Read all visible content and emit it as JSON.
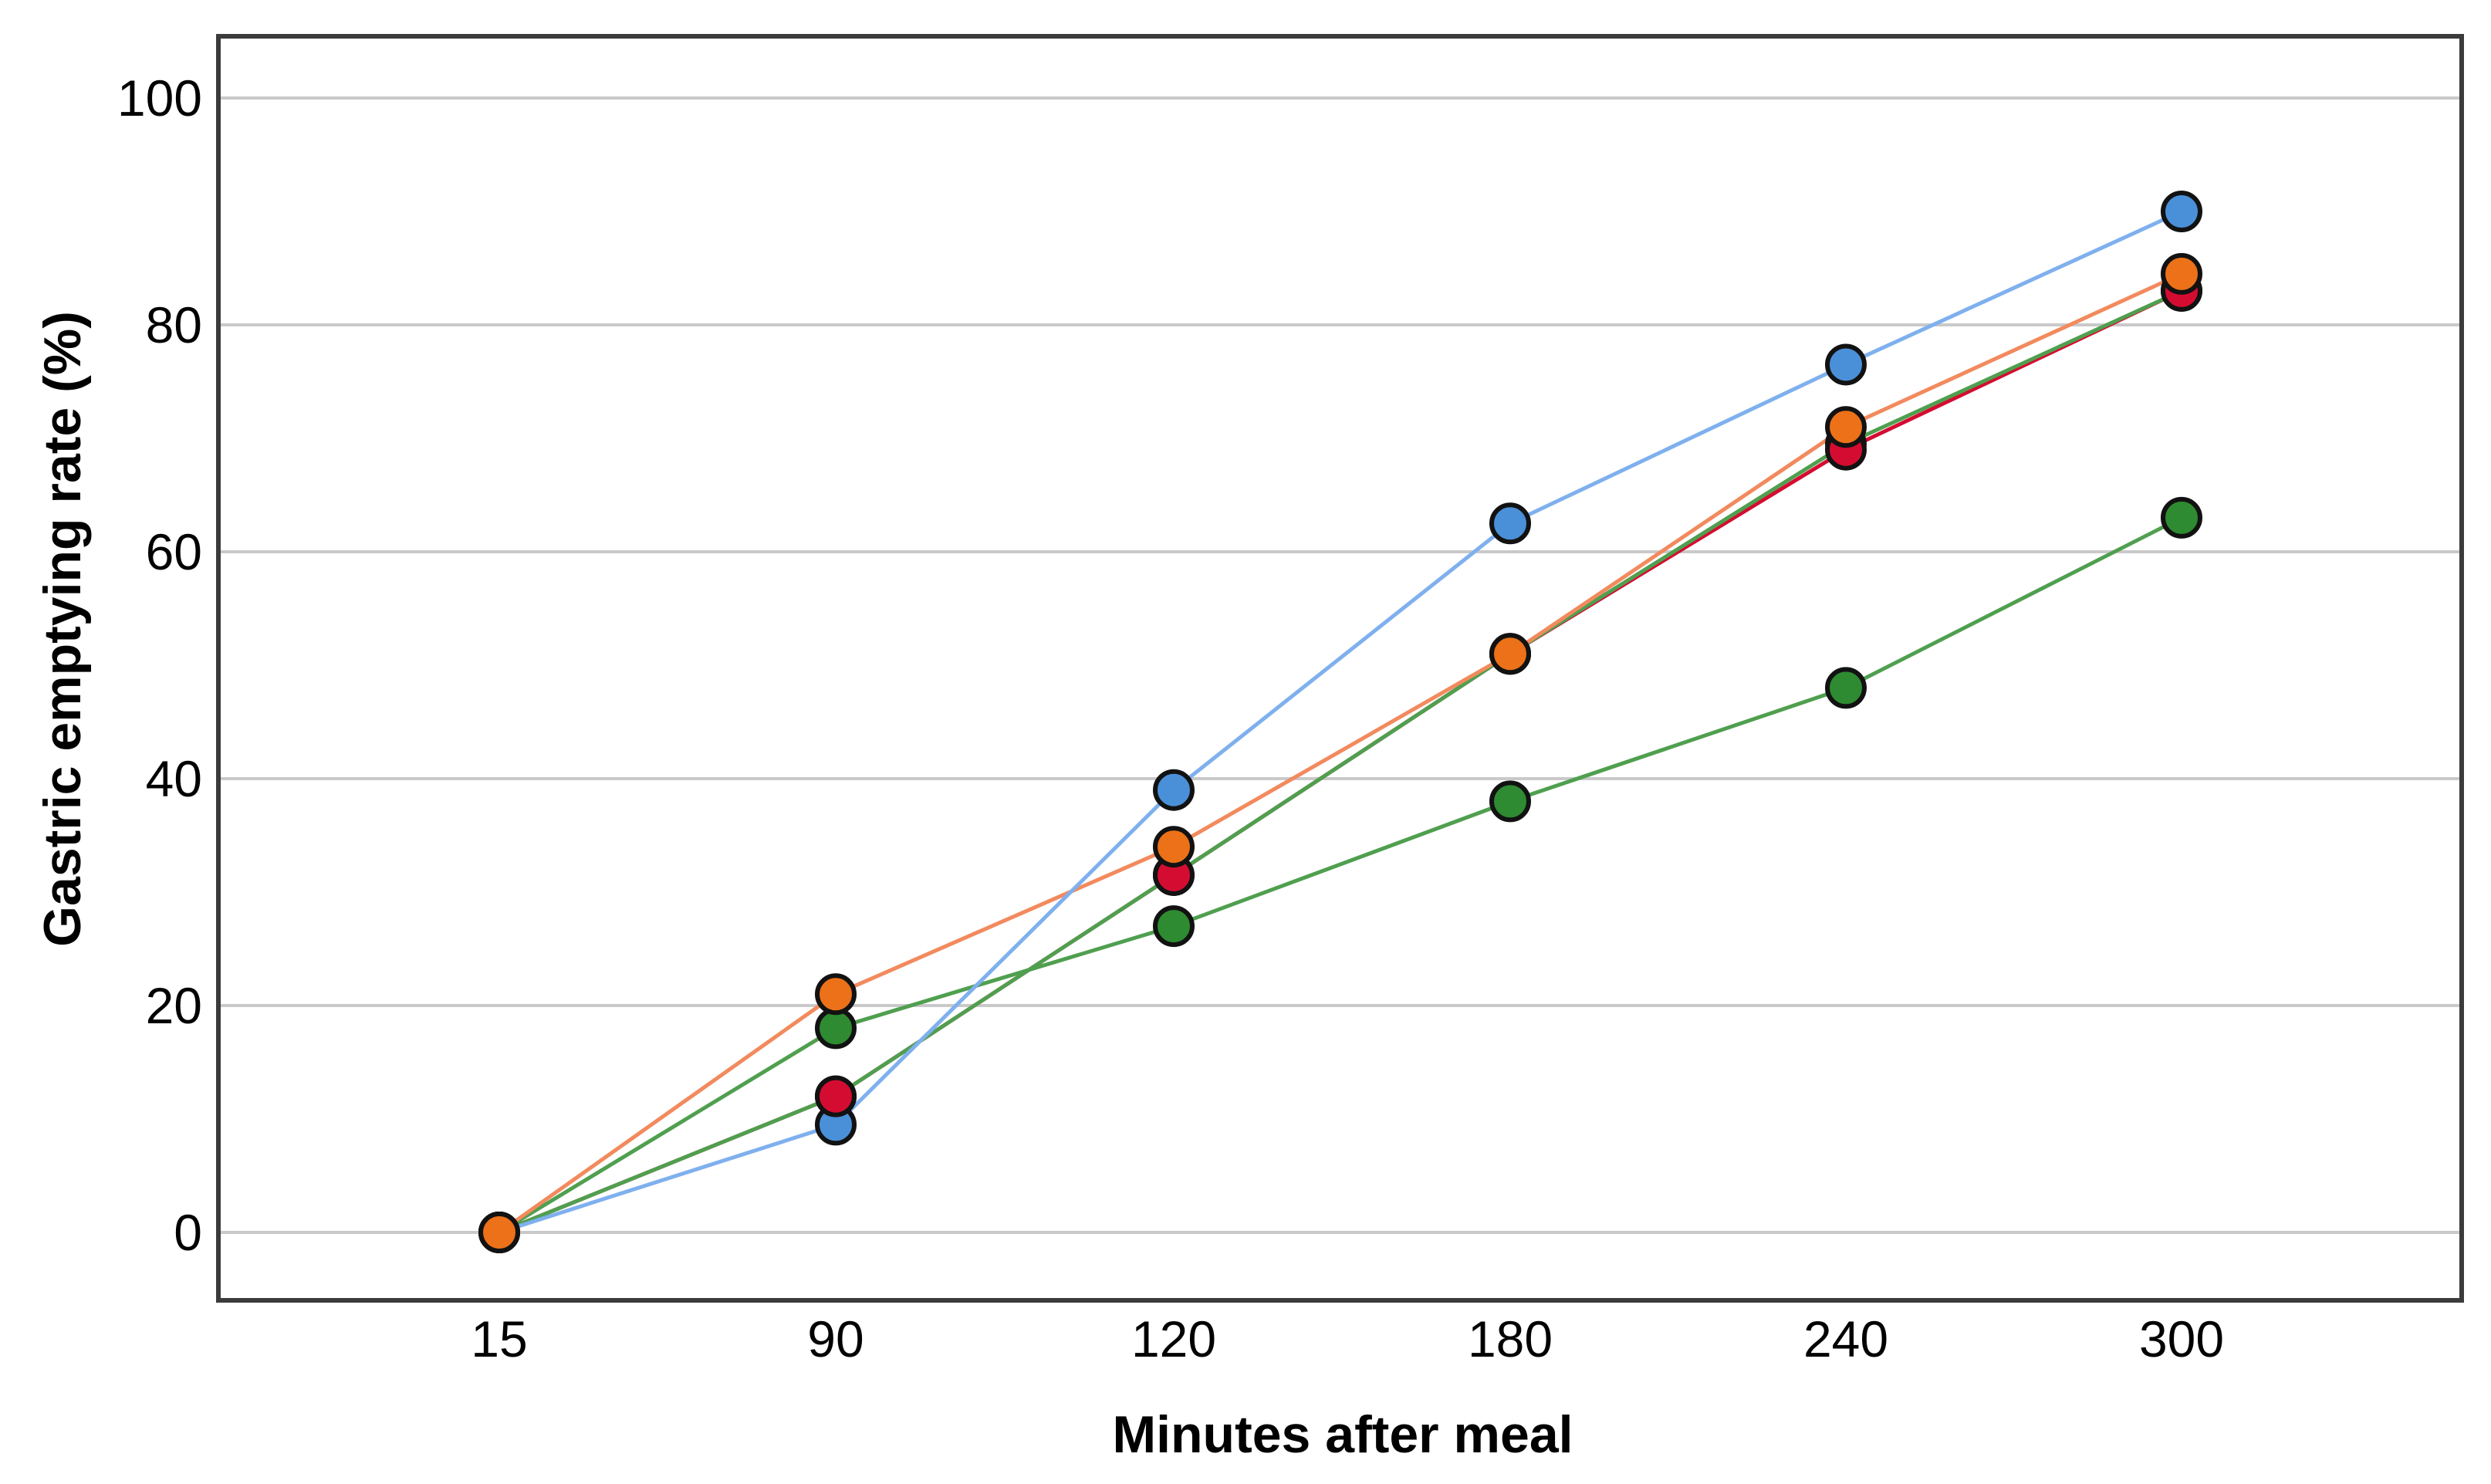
{
  "figure": {
    "background": "#ffffff"
  },
  "chart_data": {
    "type": "line",
    "title": "",
    "xlabel": "Minutes after meal",
    "ylabel": "Gastric emptying rate (%)",
    "x_axis_type": "categorical",
    "categories": [
      "15",
      "90",
      "120",
      "180",
      "240",
      "300"
    ],
    "yticks": [
      0,
      20,
      40,
      60,
      80,
      100
    ],
    "ylim": [
      0,
      100
    ],
    "grid": "horizontal",
    "legend": "none",
    "marker": "filled-circle-black-edge",
    "series": [
      {
        "id": "blue",
        "name": "blue-series",
        "line_color": "#7fb0ee",
        "fill_color": "#4a90d8",
        "values": [
          0,
          9.5,
          39,
          62.5,
          76.5,
          90
        ]
      },
      {
        "id": "orange",
        "name": "orange-series",
        "line_color": "#f28a5e",
        "fill_color": "#ec7118",
        "values": [
          0,
          21,
          34,
          51,
          71,
          84.5
        ]
      },
      {
        "id": "red",
        "name": "red-series",
        "line_color": "#d50c31",
        "fill_color": "#d50c31",
        "values": [
          0,
          12,
          31.5,
          51,
          69,
          83
        ]
      },
      {
        "id": "green_a",
        "name": "green-series-upper",
        "line_color": "#4f9f4f",
        "fill_color": "#2e8b31",
        "values": [
          0,
          12,
          31.5,
          51,
          69.5,
          83
        ]
      },
      {
        "id": "green_b",
        "name": "green-series-lower",
        "line_color": "#4f9f4f",
        "fill_color": "#2e8b31",
        "values": [
          0,
          18,
          27,
          38,
          48,
          63
        ]
      }
    ],
    "style": {
      "grid_color": "#c9c9c9",
      "border_color": "#3b3b3b",
      "marker_edge_color": "#121212",
      "text_color": "#000000"
    }
  }
}
